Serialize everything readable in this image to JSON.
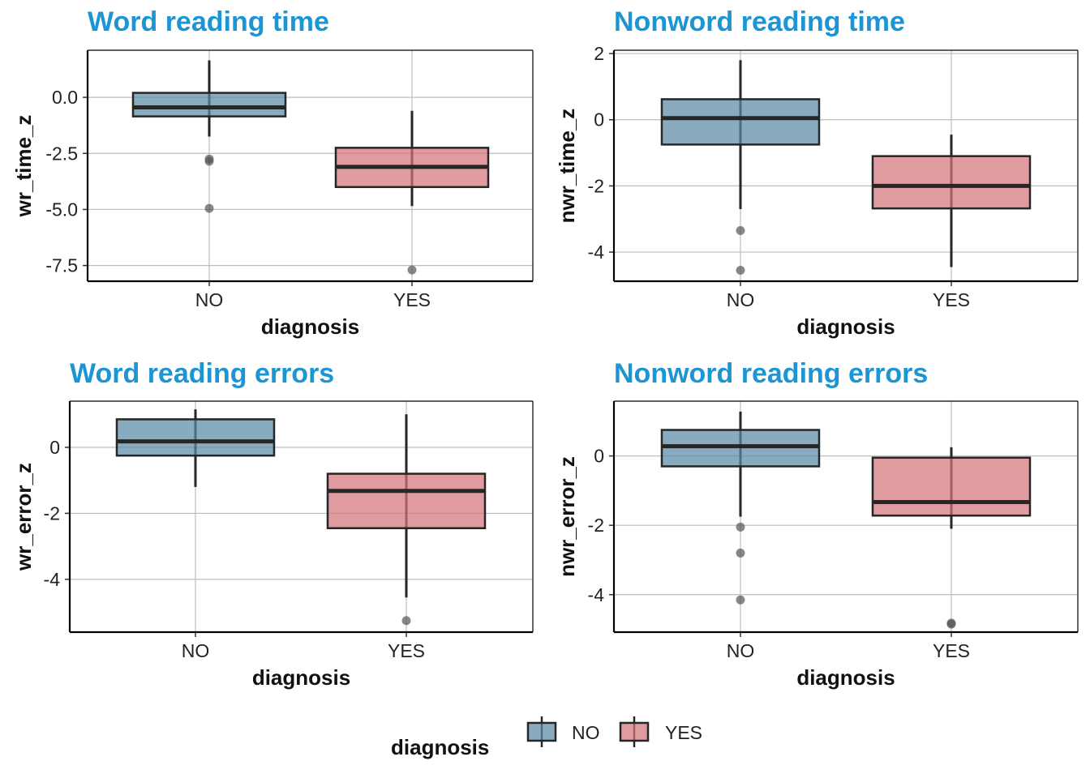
{
  "colors": {
    "NO": "#5a8aa6",
    "YES": "#d2747a",
    "title": "#1b95d3",
    "box_line": "#262626",
    "outlier": "#555555",
    "grid": "#bdbdbd"
  },
  "legend": {
    "title": "diagnosis",
    "items": [
      {
        "key": "NO",
        "label": "NO"
      },
      {
        "key": "YES",
        "label": "YES"
      }
    ],
    "placement": "bottom"
  },
  "chart_data": [
    {
      "type": "box",
      "title": "Word reading time",
      "xlabel": "diagnosis",
      "ylabel": "wr_time_z",
      "categories": [
        "NO",
        "YES"
      ],
      "ylim": [
        -8.2,
        2.1
      ],
      "yticks": [
        0.0,
        -2.5,
        -5.0,
        -7.5
      ],
      "ytick_labels": [
        "0.0",
        "-2.5",
        "-5.0",
        "-7.5"
      ],
      "grid": true,
      "boxes": [
        {
          "category": "NO",
          "whisker_low": -1.75,
          "q1": -0.85,
          "median": -0.45,
          "q3": 0.2,
          "whisker_high": 1.65,
          "outliers": [
            -2.75,
            -2.85,
            -4.95
          ]
        },
        {
          "category": "YES",
          "whisker_low": -4.85,
          "q1": -4.0,
          "median": -3.1,
          "q3": -2.25,
          "whisker_high": -0.6,
          "outliers": [
            -7.7
          ]
        }
      ]
    },
    {
      "type": "box",
      "title": "Nonword reading time",
      "xlabel": "diagnosis",
      "ylabel": "nwr_time_z",
      "categories": [
        "NO",
        "YES"
      ],
      "ylim": [
        -4.88,
        2.1
      ],
      "yticks": [
        2,
        0,
        -2,
        -4
      ],
      "ytick_labels": [
        "2",
        "0",
        "-2",
        "-4"
      ],
      "grid": true,
      "boxes": [
        {
          "category": "NO",
          "whisker_low": -2.7,
          "q1": -0.75,
          "median": 0.05,
          "q3": 0.62,
          "whisker_high": 1.8,
          "outliers": [
            -3.35,
            -4.55
          ]
        },
        {
          "category": "YES",
          "whisker_low": -4.45,
          "q1": -2.68,
          "median": -2.0,
          "q3": -1.1,
          "whisker_high": -0.45,
          "outliers": []
        }
      ]
    },
    {
      "type": "box",
      "title": "Word reading errors",
      "xlabel": "diagnosis",
      "ylabel": "wr_error_z",
      "categories": [
        "NO",
        "YES"
      ],
      "ylim": [
        -5.6,
        1.4
      ],
      "yticks": [
        0,
        -2,
        -4
      ],
      "ytick_labels": [
        "0",
        "-2",
        "-4"
      ],
      "grid": true,
      "boxes": [
        {
          "category": "NO",
          "whisker_low": -1.2,
          "q1": -0.25,
          "median": 0.18,
          "q3": 0.85,
          "whisker_high": 1.15,
          "outliers": []
        },
        {
          "category": "YES",
          "whisker_low": -4.55,
          "q1": -2.45,
          "median": -1.32,
          "q3": -0.8,
          "whisker_high": 1.0,
          "outliers": [
            -5.25
          ]
        }
      ]
    },
    {
      "type": "box",
      "title": "Nonword reading errors",
      "xlabel": "diagnosis",
      "ylabel": "nwr_error_z",
      "categories": [
        "NO",
        "YES"
      ],
      "ylim": [
        -5.08,
        1.58
      ],
      "yticks": [
        0,
        -2,
        -4
      ],
      "ytick_labels": [
        "0",
        "-2",
        "-4"
      ],
      "grid": true,
      "boxes": [
        {
          "category": "NO",
          "whisker_low": -1.75,
          "q1": -0.3,
          "median": 0.28,
          "q3": 0.75,
          "whisker_high": 1.28,
          "outliers": [
            -2.05,
            -2.8,
            -4.15
          ]
        },
        {
          "category": "YES",
          "whisker_low": -2.1,
          "q1": -1.72,
          "median": -1.33,
          "q3": -0.05,
          "whisker_high": 0.25,
          "outliers": [
            -4.82,
            -4.85
          ]
        }
      ]
    }
  ]
}
